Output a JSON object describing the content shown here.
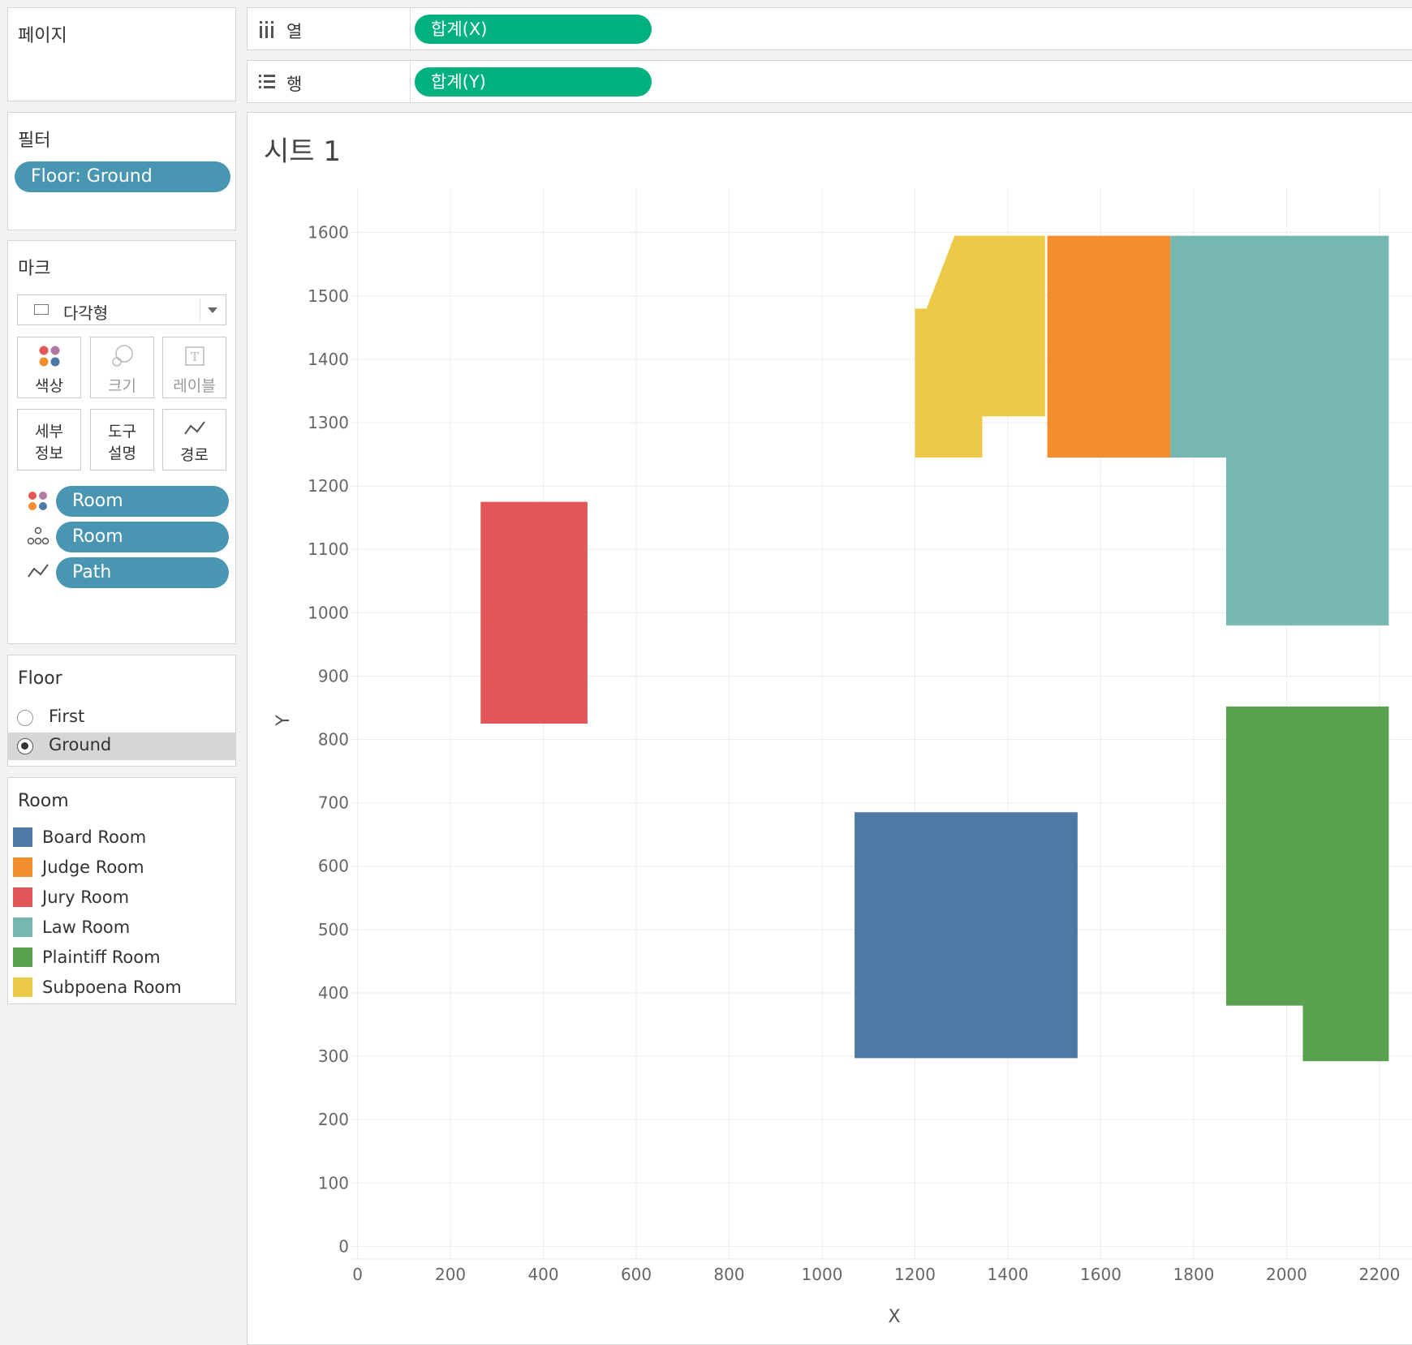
{
  "pages_panel": {
    "title": "페이지"
  },
  "filters_panel": {
    "title": "필터",
    "filter_pill": "Floor: Ground"
  },
  "marks_panel": {
    "title": "마크",
    "mark_type": "다각형",
    "buttons": {
      "color": "색상",
      "size": "크기",
      "label": "레이블",
      "detail_line1": "세부",
      "detail_line2": "정보",
      "tooltip_line1": "도구",
      "tooltip_line2": "설명",
      "path": "경로"
    },
    "pills": [
      {
        "icon": "color-icon",
        "label": "Room"
      },
      {
        "icon": "detail-icon",
        "label": "Room"
      },
      {
        "icon": "path-icon",
        "label": "Path"
      }
    ]
  },
  "floor_filter": {
    "title": "Floor",
    "options": [
      "First",
      "Ground"
    ],
    "selected": "Ground"
  },
  "room_legend": {
    "title": "Room",
    "items": [
      {
        "label": "Board Room",
        "color": "#4e79a7"
      },
      {
        "label": "Judge Room",
        "color": "#f28e2b"
      },
      {
        "label": "Jury Room",
        "color": "#e15759"
      },
      {
        "label": "Law Room",
        "color": "#76b7b2"
      },
      {
        "label": "Plaintiff Room",
        "color": "#59a14f"
      },
      {
        "label": "Subpoena Room",
        "color": "#edc948"
      }
    ]
  },
  "shelves": {
    "columns_label": "열",
    "rows_label": "행",
    "columns_pill": "합계(X)",
    "rows_pill": "합계(Y)"
  },
  "sheet_title": "시트 1",
  "chart_data": {
    "type": "polygon",
    "xlabel": "X",
    "ylabel": "Y",
    "xlim": [
      -15,
      2270
    ],
    "ylim": [
      -20,
      1670
    ],
    "x_ticks": [
      0,
      200,
      400,
      600,
      800,
      1000,
      1200,
      1400,
      1600,
      1800,
      2000,
      2200
    ],
    "y_ticks": [
      0,
      100,
      200,
      300,
      400,
      500,
      600,
      700,
      800,
      900,
      1000,
      1100,
      1200,
      1300,
      1400,
      1500,
      1600
    ],
    "grid": true,
    "series": [
      {
        "name": "Subpoena Room",
        "color": "#edc948",
        "points": [
          [
            1200,
            1480
          ],
          [
            1225,
            1480
          ],
          [
            1285,
            1595
          ],
          [
            1480,
            1595
          ],
          [
            1480,
            1310
          ],
          [
            1345,
            1310
          ],
          [
            1345,
            1245
          ],
          [
            1200,
            1245
          ]
        ]
      },
      {
        "name": "Judge Room",
        "color": "#f28e2b",
        "points": [
          [
            1485,
            1595
          ],
          [
            1750,
            1595
          ],
          [
            1750,
            1245
          ],
          [
            1485,
            1245
          ]
        ]
      },
      {
        "name": "Law Room",
        "color": "#76b7b2",
        "points": [
          [
            1750,
            1595
          ],
          [
            2220,
            1595
          ],
          [
            2220,
            980
          ],
          [
            1870,
            980
          ],
          [
            1870,
            1245
          ],
          [
            1750,
            1245
          ]
        ]
      },
      {
        "name": "Jury Room",
        "color": "#e15759",
        "points": [
          [
            265,
            1175
          ],
          [
            495,
            1175
          ],
          [
            495,
            825
          ],
          [
            265,
            825
          ]
        ]
      },
      {
        "name": "Board Room",
        "color": "#4e79a7",
        "points": [
          [
            1070,
            685
          ],
          [
            1550,
            685
          ],
          [
            1550,
            297
          ],
          [
            1070,
            297
          ]
        ]
      },
      {
        "name": "Plaintiff Room",
        "color": "#59a14f",
        "points": [
          [
            1870,
            852
          ],
          [
            2220,
            852
          ],
          [
            2220,
            292
          ],
          [
            2035,
            292
          ],
          [
            2035,
            380
          ],
          [
            1870,
            380
          ]
        ]
      }
    ]
  }
}
